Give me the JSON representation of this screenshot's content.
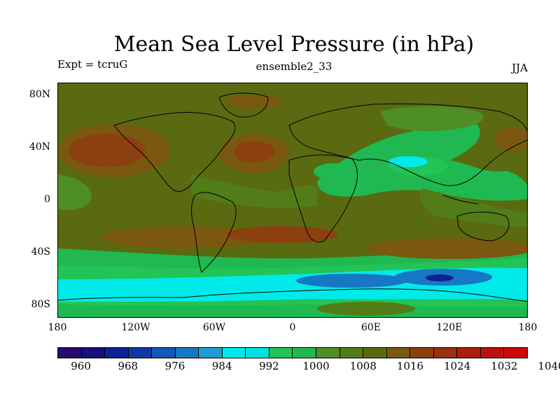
{
  "title": "Mean Sea Level Pressure (in hPa)",
  "expt": "Expt = tcruG",
  "ensemble": "ensemble2_33",
  "season": "JJA",
  "lat_labels": [
    "80N",
    "40N",
    "0",
    "40S",
    "80S"
  ],
  "lon_labels": [
    "180",
    "120W",
    "60W",
    "0",
    "60E",
    "120E",
    "180"
  ],
  "colorbar": {
    "colors": [
      "#2b0a6e",
      "#16107e",
      "#0e2092",
      "#1038a4",
      "#1258b4",
      "#1678c4",
      "#1e9cd4",
      "#00eaea",
      "#00e0e0",
      "#22c455",
      "#20b850",
      "#4e8e24",
      "#527c18",
      "#5a6a10",
      "#7a5810",
      "#8c4010",
      "#9a3010",
      "#aa1e10",
      "#bc1010",
      "#cc0a0a"
    ],
    "labels": [
      "960",
      "968",
      "976",
      "984",
      "992",
      "1000",
      "1008",
      "1016",
      "1024",
      "1032",
      "1040"
    ]
  },
  "palette": {
    "ocean_base": "#5a6a10",
    "high_1016": "#527c18",
    "high_1024": "#7a5810",
    "high_1032": "#8c4010",
    "low_1008": "#20b850",
    "low_1000": "#22c455",
    "low_992": "#00eaea",
    "low_984": "#1678c4",
    "green_1012": "#4e8e24"
  }
}
